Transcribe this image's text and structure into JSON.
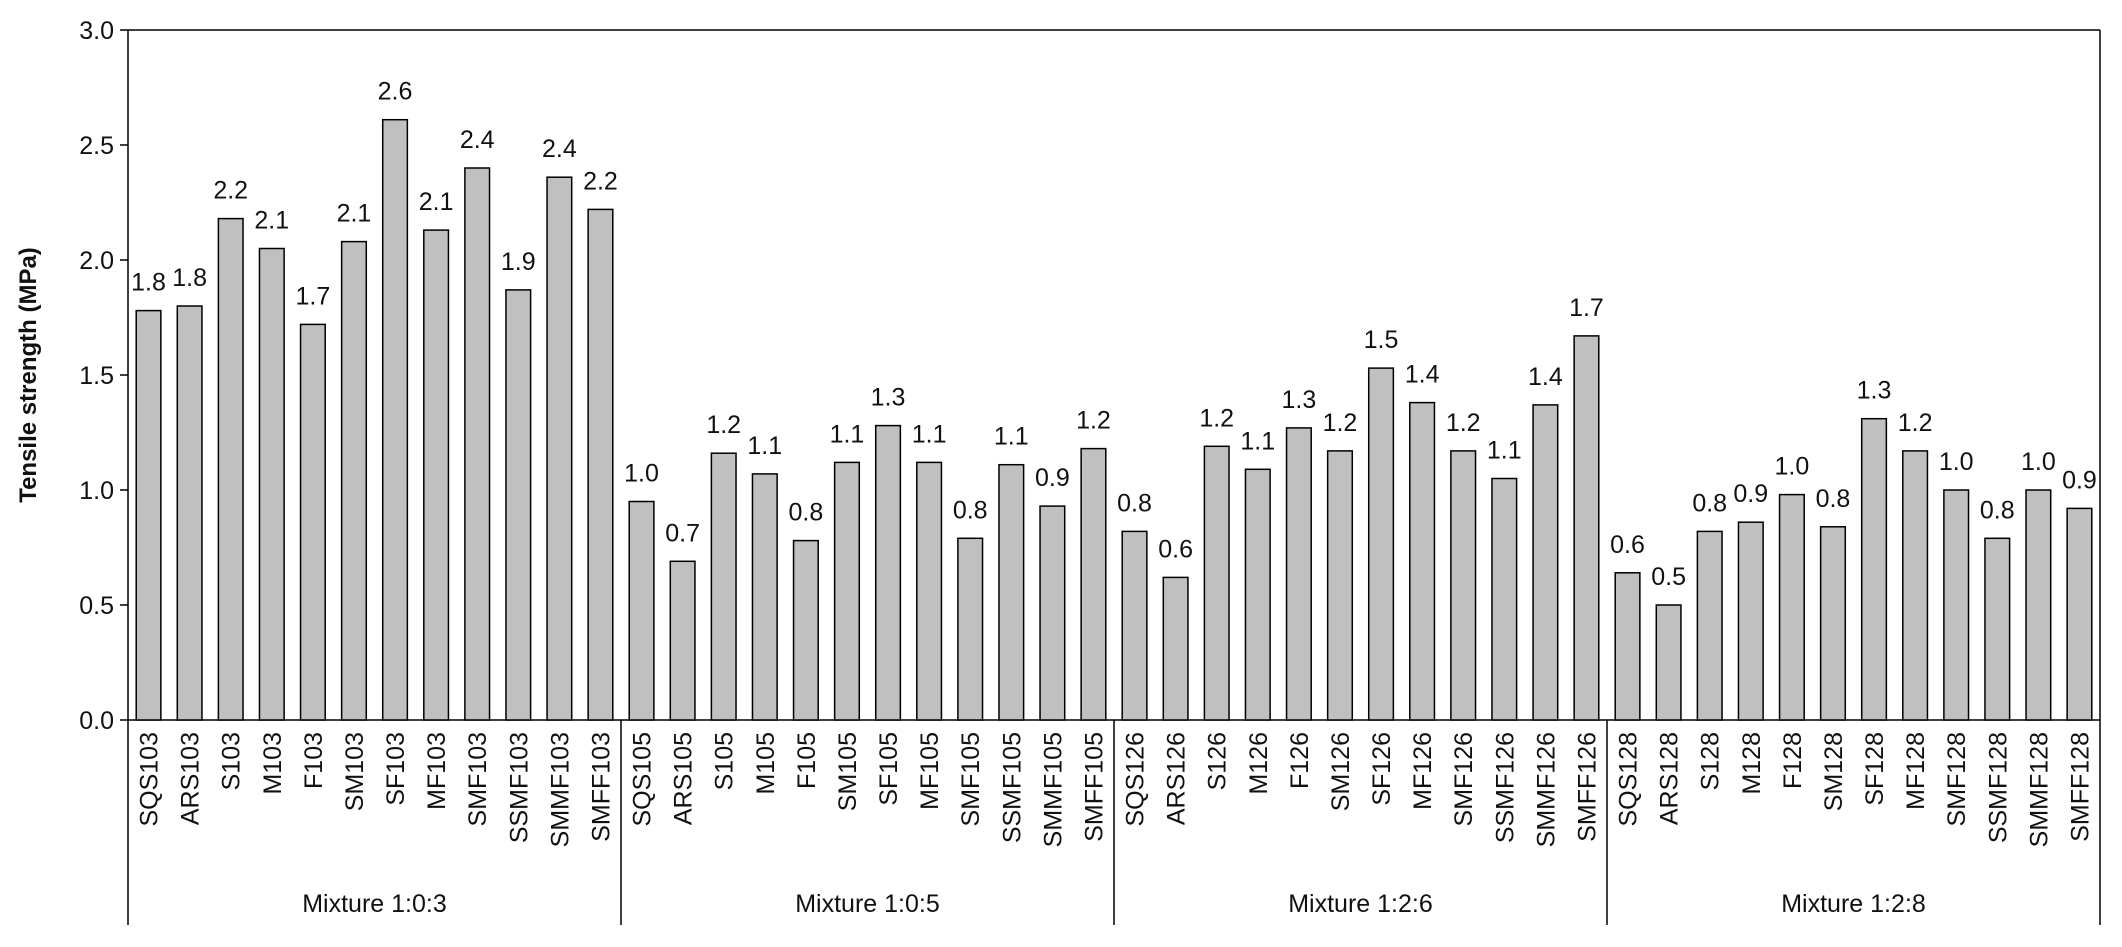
{
  "chart_data": {
    "type": "bar",
    "title": "",
    "ylabel": "Tensile strength (MPa)",
    "xlabel": "",
    "ylim": [
      0,
      3.0
    ],
    "yticks": [
      "0.0",
      "0.5",
      "1.0",
      "1.5",
      "2.0",
      "2.5",
      "3.0"
    ],
    "grid": false,
    "colors": {
      "bar_fill": "#c0c0c0",
      "bar_stroke": "#000000"
    },
    "groups": [
      {
        "label": "Mixture 1:0:3",
        "categories": [
          "SQS103",
          "ARS103",
          "S103",
          "M103",
          "F103",
          "SM103",
          "SF103",
          "MF103",
          "SMF103",
          "SSMF103",
          "SMMF103",
          "SMFF103"
        ],
        "values": [
          1.78,
          1.8,
          2.18,
          2.05,
          1.72,
          2.08,
          2.61,
          2.13,
          2.4,
          1.87,
          2.36,
          2.22
        ],
        "labels": [
          "1.8",
          "1.8",
          "2.2",
          "2.1",
          "1.7",
          "2.1",
          "2.6",
          "2.1",
          "2.4",
          "1.9",
          "2.4",
          "2.2"
        ]
      },
      {
        "label": "Mixture 1:0:5",
        "categories": [
          "SQS105",
          "ARS105",
          "S105",
          "M105",
          "F105",
          "SM105",
          "SF105",
          "MF105",
          "SMF105",
          "SSMF105",
          "SMMF105",
          "SMFF105"
        ],
        "values": [
          0.95,
          0.69,
          1.16,
          1.07,
          0.78,
          1.12,
          1.28,
          1.12,
          0.79,
          1.11,
          0.93,
          1.18
        ],
        "labels": [
          "1.0",
          "0.7",
          "1.2",
          "1.1",
          "0.8",
          "1.1",
          "1.3",
          "1.1",
          "0.8",
          "1.1",
          "0.9",
          "1.2"
        ]
      },
      {
        "label": "Mixture 1:2:6",
        "categories": [
          "SQS126",
          "ARS126",
          "S126",
          "M126",
          "F126",
          "SM126",
          "SF126",
          "MF126",
          "SMF126",
          "SSMF126",
          "SMMF126",
          "SMFF126"
        ],
        "values": [
          0.82,
          0.62,
          1.19,
          1.09,
          1.27,
          1.17,
          1.53,
          1.38,
          1.17,
          1.05,
          1.37,
          1.67
        ],
        "labels": [
          "0.8",
          "0.6",
          "1.2",
          "1.1",
          "1.3",
          "1.2",
          "1.5",
          "1.4",
          "1.2",
          "1.1",
          "1.4",
          "1.7"
        ]
      },
      {
        "label": "Mixture 1:2:8",
        "categories": [
          "SQS128",
          "ARS128",
          "S128",
          "M128",
          "F128",
          "SM128",
          "SF128",
          "MF128",
          "SMF128",
          "SSMF128",
          "SMMF128",
          "SMFF128"
        ],
        "values": [
          0.64,
          0.5,
          0.82,
          0.86,
          0.98,
          0.84,
          1.31,
          1.17,
          1.0,
          0.79,
          1.0,
          0.92
        ],
        "labels": [
          "0.6",
          "0.5",
          "0.8",
          "0.9",
          "1.0",
          "0.8",
          "1.3",
          "1.2",
          "1.0",
          "0.8",
          "1.0",
          "0.9"
        ]
      }
    ]
  }
}
